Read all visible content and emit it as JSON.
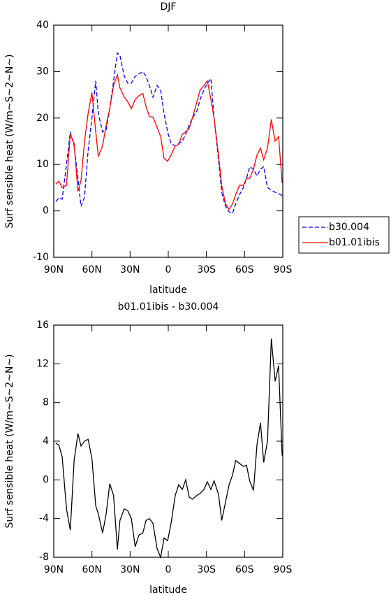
{
  "chart_data": [
    {
      "type": "line",
      "title": "DJF",
      "xlabel": "latitude",
      "ylabel": "Surf sensible heat (W/m~S~2~N~)",
      "x": [
        88.4,
        86,
        83.4,
        80,
        77,
        74,
        71,
        68.6,
        65.8,
        63,
        60,
        57,
        55,
        51.6,
        48.8,
        46,
        43,
        40,
        38,
        34.6,
        31.8,
        29,
        26,
        23,
        20,
        17.5,
        14.8,
        12,
        8.8,
        6,
        3.3,
        0.5,
        -2.2,
        -5.5,
        -8.2,
        -11,
        -13.7,
        -16.5,
        -19,
        -22.5,
        -25,
        -28,
        -30.7,
        -33.5,
        -36,
        -39.5,
        -42,
        -45,
        -47.8,
        -50.5,
        -53,
        -56,
        -59,
        -61.5,
        -64,
        -67,
        -69.7,
        -72.5,
        -75,
        -78,
        -81,
        -84,
        -86.7,
        -89.5
      ],
      "series": [
        {
          "name": "b30.004",
          "color": "#0000ff",
          "line_style": "dashed",
          "values": [
            2,
            2.8,
            2.5,
            10,
            17,
            14,
            7,
            1,
            3,
            13,
            20,
            28,
            21,
            17,
            17.5,
            22,
            28,
            34,
            33.5,
            29,
            27.5,
            27.5,
            29,
            29.5,
            30,
            29,
            27,
            24.5,
            27,
            26,
            21,
            17,
            14.5,
            14,
            14.5,
            15,
            16.5,
            18.5,
            20,
            21.5,
            24,
            26,
            27.5,
            28.5,
            20,
            11,
            4,
            1,
            -0.2,
            -0.5,
            1.5,
            3.5,
            5,
            7,
            9.5,
            9,
            7.5,
            9,
            9.5,
            5,
            4.5,
            4,
            3.7,
            3.3
          ]
        },
        {
          "name": "b01.01ibis",
          "color": "#ff0000",
          "line_style": "solid",
          "values": [
            5.8,
            6.4,
            5,
            5.5,
            16.5,
            14.5,
            4.2,
            6.5,
            15,
            21,
            25.5,
            17,
            11.8,
            14,
            18.5,
            22,
            27,
            29.3,
            26.5,
            24.5,
            23.5,
            22,
            24,
            24.8,
            25.3,
            22.5,
            20.3,
            20.2,
            18,
            16,
            11.3,
            10.7,
            12,
            14,
            14.3,
            16.5,
            17,
            17.8,
            20,
            23.5,
            26,
            27,
            28,
            24,
            20,
            12,
            5.5,
            1.5,
            0.3,
            1.5,
            3.5,
            5.5,
            5.5,
            7,
            7,
            9,
            12,
            13.5,
            11,
            13.5,
            19.7,
            15,
            16,
            6
          ]
        }
      ],
      "xlim": [
        90,
        -90
      ],
      "xticks": [
        {
          "value": 90,
          "label": "90N"
        },
        {
          "value": 60,
          "label": "60N"
        },
        {
          "value": 30,
          "label": "30N"
        },
        0,
        {
          "value": -30,
          "label": "30S"
        },
        {
          "value": -60,
          "label": "60S"
        },
        {
          "value": -90,
          "label": "90S"
        }
      ],
      "ylim": [
        -10,
        40
      ],
      "yticks": [
        -10,
        0,
        10,
        20,
        30,
        40
      ],
      "grid": false,
      "legend": "right"
    },
    {
      "type": "line",
      "title": "b01.01ibis - b30.004",
      "xlabel": "latitude",
      "ylabel": "Surf sensible heat (W/m~S~2~N~)",
      "x": [
        88.4,
        86,
        83.4,
        80,
        77,
        74,
        71,
        68.6,
        65.8,
        63,
        60,
        57,
        55,
        51.6,
        48.8,
        46,
        43,
        40,
        38,
        34.6,
        31.8,
        29,
        26,
        23,
        20,
        17.5,
        14.8,
        12,
        8.8,
        6,
        3.3,
        0.5,
        -2.2,
        -5.5,
        -8.2,
        -11,
        -13.7,
        -16.5,
        -19,
        -22.5,
        -25,
        -28,
        -30.7,
        -33.5,
        -36,
        -39.5,
        -42,
        -45,
        -47.8,
        -50.5,
        -53,
        -56,
        -59,
        -61.5,
        -64,
        -67,
        -69.7,
        -72.5,
        -75,
        -78,
        -81,
        -84,
        -86.7,
        -89.5
      ],
      "values": [
        3.8,
        3.6,
        2.4,
        -3,
        -5.2,
        2,
        4.8,
        3.5,
        4,
        4.2,
        2.2,
        -2.7,
        -3.5,
        -5.5,
        -3.5,
        -0.4,
        -1.6,
        -7.2,
        -4.2,
        -3,
        -3.2,
        -4,
        -6.9,
        -5.7,
        -5.5,
        -4.2,
        -4,
        -4.5,
        -7.1,
        -8,
        -6,
        -6.3,
        -4.5,
        -1.6,
        -0.5,
        -1,
        0,
        -1.8,
        -2,
        -1.6,
        -1.4,
        -1,
        -0.2,
        -1,
        -0.1,
        -1.5,
        -4.2,
        -2.3,
        -0.5,
        0.5,
        2,
        1.7,
        1.4,
        1.5,
        -0.1,
        -1.1,
        3.6,
        5.9,
        1.8,
        4,
        14.6,
        10.2,
        11.8,
        2.5
      ],
      "color": "#000000",
      "xlim": [
        90,
        -90
      ],
      "xticks": [
        {
          "value": 90,
          "label": "90N"
        },
        {
          "value": 60,
          "label": "60N"
        },
        {
          "value": 30,
          "label": "30N"
        },
        0,
        {
          "value": -30,
          "label": "30S"
        },
        {
          "value": -60,
          "label": "60S"
        },
        {
          "value": -90,
          "label": "90S"
        }
      ],
      "ylim": [
        -8,
        16
      ],
      "yticks": [
        -8,
        -4,
        0,
        4,
        8,
        12,
        16
      ],
      "grid": false
    }
  ]
}
